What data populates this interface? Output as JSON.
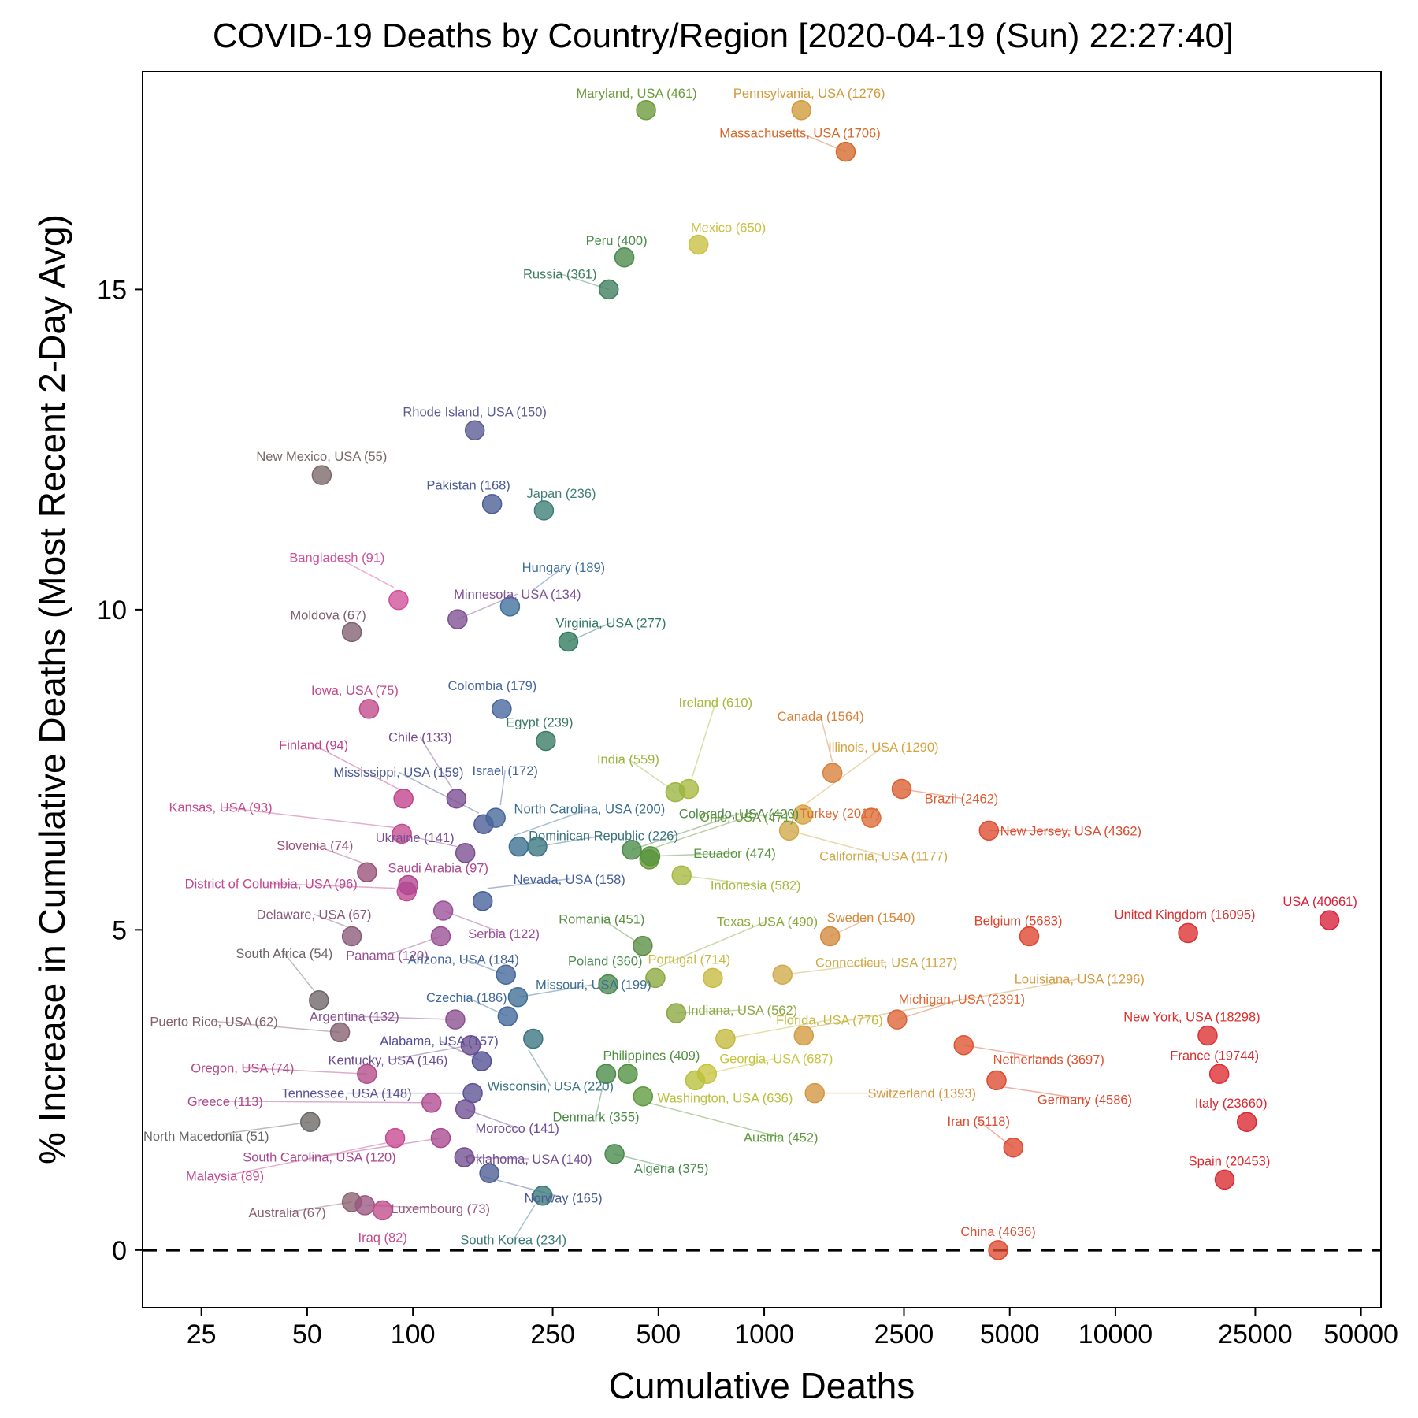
{
  "chart_data": {
    "type": "scatter",
    "title": "COVID-19 Deaths by Country/Region [2020-04-19 (Sun) 22:27:40]",
    "xlabel": "Cumulative Deaths",
    "ylabel": "% Increase in Cumulative Deaths (Most Recent 2-Day Avg)",
    "x_scale": "log",
    "xlim": [
      17,
      57000
    ],
    "ylim": [
      -0.9,
      18.4
    ],
    "x_ticks": [
      25,
      50,
      100,
      250,
      500,
      1000,
      2500,
      5000,
      10000,
      25000,
      50000
    ],
    "x_tick_labels": [
      "25",
      "50",
      "100",
      "250",
      "500",
      "1000",
      "2500",
      "5000",
      "10000",
      "25000",
      "50000"
    ],
    "y_ticks": [
      0,
      5,
      10,
      15
    ],
    "y_tick_labels": [
      "0",
      "5",
      "10",
      "15"
    ],
    "reference_line": {
      "y": 0,
      "style": "dashed"
    },
    "grid": false,
    "points": [
      {
        "label": "Maryland, USA (461)",
        "x": 461,
        "y": 17.8,
        "color": "#6a9a3a"
      },
      {
        "label": "Pennsylvania, USA (1276)",
        "x": 1276,
        "y": 17.8,
        "color": "#d09a3a"
      },
      {
        "label": "Massachusetts, USA (1706)",
        "x": 1706,
        "y": 17.15,
        "color": "#d4682a"
      },
      {
        "label": "Peru (400)",
        "x": 400,
        "y": 15.5,
        "color": "#4a8a4a"
      },
      {
        "label": "Mexico (650)",
        "x": 650,
        "y": 15.7,
        "color": "#c8c040"
      },
      {
        "label": "Russia (361)",
        "x": 361,
        "y": 15.0,
        "color": "#3e7e5e"
      },
      {
        "label": "Rhode Island, USA (150)",
        "x": 150,
        "y": 12.8,
        "color": "#5a5a94"
      },
      {
        "label": "New Mexico, USA (55)",
        "x": 55,
        "y": 12.1,
        "color": "#7a6868"
      },
      {
        "label": "Pakistan (168)",
        "x": 168,
        "y": 11.65,
        "color": "#4a5e94"
      },
      {
        "label": "Japan (236)",
        "x": 236,
        "y": 11.55,
        "color": "#3e7e76"
      },
      {
        "label": "Hungary (189)",
        "x": 189,
        "y": 10.05,
        "color": "#3e6e9a"
      },
      {
        "label": "Bangladesh (91)",
        "x": 91,
        "y": 10.15,
        "color": "#d0509a"
      },
      {
        "label": "Minnesota, USA (134)",
        "x": 134,
        "y": 9.85,
        "color": "#7e5094"
      },
      {
        "label": "Moldova (67)",
        "x": 67,
        "y": 9.65,
        "color": "#806070"
      },
      {
        "label": "Virginia, USA (277)",
        "x": 277,
        "y": 9.5,
        "color": "#2e7a5e"
      },
      {
        "label": "Iowa, USA (75)",
        "x": 75,
        "y": 8.45,
        "color": "#c04a8a"
      },
      {
        "label": "Colombia (179)",
        "x": 179,
        "y": 8.45,
        "color": "#46669e"
      },
      {
        "label": "Egypt (239)",
        "x": 239,
        "y": 7.95,
        "color": "#3a7a64"
      },
      {
        "label": "Finland (94)",
        "x": 94,
        "y": 7.05,
        "color": "#c0408a"
      },
      {
        "label": "Chile (133)",
        "x": 133,
        "y": 7.05,
        "color": "#7a4a90"
      },
      {
        "label": "Mississippi, USA (159)",
        "x": 159,
        "y": 6.65,
        "color": "#4a5a94"
      },
      {
        "label": "Israel (172)",
        "x": 172,
        "y": 6.75,
        "color": "#46669a"
      },
      {
        "label": "Kansas, USA (93)",
        "x": 93,
        "y": 6.5,
        "color": "#c44a90"
      },
      {
        "label": "Ukraine (141)",
        "x": 141,
        "y": 6.2,
        "color": "#7a4e90"
      },
      {
        "label": "North Carolina, USA (200)",
        "x": 200,
        "y": 6.3,
        "color": "#3a6e90"
      },
      {
        "label": "Dominican Republic (226)",
        "x": 226,
        "y": 6.3,
        "color": "#3a7480"
      },
      {
        "label": "Slovenia (74)",
        "x": 74,
        "y": 5.9,
        "color": "#9a5078"
      },
      {
        "label": "District of Columbia, USA (96)",
        "x": 96,
        "y": 5.6,
        "color": "#c04890"
      },
      {
        "label": "Saudi Arabia (97)",
        "x": 97,
        "y": 5.7,
        "color": "#b04690"
      },
      {
        "label": "Nevada, USA (158)",
        "x": 158,
        "y": 5.45,
        "color": "#44609a"
      },
      {
        "label": "Serbia (122)",
        "x": 122,
        "y": 5.3,
        "color": "#9a5098"
      },
      {
        "label": "Delaware, USA (67)",
        "x": 67,
        "y": 4.9,
        "color": "#8a5a7a"
      },
      {
        "label": "Panama (120)",
        "x": 120,
        "y": 4.9,
        "color": "#9a4e94"
      },
      {
        "label": "South Africa (54)",
        "x": 54,
        "y": 3.9,
        "color": "#6e6466"
      },
      {
        "label": "Argentina (132)",
        "x": 132,
        "y": 3.6,
        "color": "#8a5090"
      },
      {
        "label": "Arizona, USA (184)",
        "x": 184,
        "y": 4.3,
        "color": "#44669a"
      },
      {
        "label": "Czechia (186)",
        "x": 186,
        "y": 3.65,
        "color": "#40689a"
      },
      {
        "label": "Puerto Rico, USA (62)",
        "x": 62,
        "y": 3.4,
        "color": "#846070"
      },
      {
        "label": "Kentucky, USA (146)",
        "x": 146,
        "y": 3.2,
        "color": "#6a4e90"
      },
      {
        "label": "Alabama, USA (157)",
        "x": 157,
        "y": 2.95,
        "color": "#524e94"
      },
      {
        "label": "Missouri, USA (199)",
        "x": 199,
        "y": 3.95,
        "color": "#3e6e94"
      },
      {
        "label": "Wisconsin, USA (220)",
        "x": 220,
        "y": 3.3,
        "color": "#3a7480"
      },
      {
        "label": "Oregon, USA (74)",
        "x": 74,
        "y": 2.75,
        "color": "#b44a88"
      },
      {
        "label": "Greece (113)",
        "x": 113,
        "y": 2.3,
        "color": "#b04a90"
      },
      {
        "label": "Tennessee, USA (148)",
        "x": 148,
        "y": 2.45,
        "color": "#5a5294"
      },
      {
        "label": "Morocco (141)",
        "x": 141,
        "y": 2.2,
        "color": "#6e4e92"
      },
      {
        "label": "North Macedonia (51)",
        "x": 51,
        "y": 2.0,
        "color": "#6a6666"
      },
      {
        "label": "Malaysia (89)",
        "x": 89,
        "y": 1.75,
        "color": "#c84890"
      },
      {
        "label": "South Carolina, USA (120)",
        "x": 120,
        "y": 1.75,
        "color": "#a84890"
      },
      {
        "label": "Oklahoma, USA (140)",
        "x": 140,
        "y": 1.45,
        "color": "#724e90"
      },
      {
        "label": "Norway (165)",
        "x": 165,
        "y": 1.2,
        "color": "#4a5c94"
      },
      {
        "label": "South Korea (234)",
        "x": 234,
        "y": 0.85,
        "color": "#3a7878"
      },
      {
        "label": "Australia (67)",
        "x": 67,
        "y": 0.75,
        "color": "#8a6070"
      },
      {
        "label": "Luxembourg (73)",
        "x": 73,
        "y": 0.7,
        "color": "#9a5680"
      },
      {
        "label": "Iraq (82)",
        "x": 82,
        "y": 0.62,
        "color": "#c04c8c"
      },
      {
        "label": "Ireland (610)",
        "x": 610,
        "y": 7.2,
        "color": "#a8b83c"
      },
      {
        "label": "India (559)",
        "x": 559,
        "y": 7.15,
        "color": "#9ab440"
      },
      {
        "label": "Colorado, USA (420)",
        "x": 420,
        "y": 6.25,
        "color": "#4a8a48"
      },
      {
        "label": "Ohio, USA (471)",
        "x": 471,
        "y": 6.1,
        "color": "#6a9a36"
      },
      {
        "label": "Ecuador (474)",
        "x": 474,
        "y": 6.15,
        "color": "#56943c"
      },
      {
        "label": "Indonesia (582)",
        "x": 582,
        "y": 5.85,
        "color": "#a6b840"
      },
      {
        "label": "Romania (451)",
        "x": 451,
        "y": 4.75,
        "color": "#5a8e44"
      },
      {
        "label": "Texas, USA (490)",
        "x": 490,
        "y": 4.25,
        "color": "#8aa83c"
      },
      {
        "label": "Poland (360)",
        "x": 360,
        "y": 4.15,
        "color": "#4a8a4e"
      },
      {
        "label": "Portugal (714)",
        "x": 714,
        "y": 4.25,
        "color": "#c8ba40"
      },
      {
        "label": "Indiana, USA (562)",
        "x": 562,
        "y": 3.7,
        "color": "#8aa840"
      },
      {
        "label": "Florida, USA (776)",
        "x": 776,
        "y": 3.3,
        "color": "#c4b83c"
      },
      {
        "label": "Georgia, USA (687)",
        "x": 687,
        "y": 2.75,
        "color": "#c6c43c"
      },
      {
        "label": "Washington, USA (636)",
        "x": 636,
        "y": 2.65,
        "color": "#b8c03c"
      },
      {
        "label": "Philippines (409)",
        "x": 409,
        "y": 2.75,
        "color": "#509040"
      },
      {
        "label": "Denmark (355)",
        "x": 355,
        "y": 2.75,
        "color": "#4a8a46"
      },
      {
        "label": "Austria (452)",
        "x": 452,
        "y": 2.4,
        "color": "#5e9a3e"
      },
      {
        "label": "Algeria (375)",
        "x": 375,
        "y": 1.5,
        "color": "#468a4a"
      },
      {
        "label": "Canada (1564)",
        "x": 1564,
        "y": 7.45,
        "color": "#d8803a"
      },
      {
        "label": "Illinois, USA (1290)",
        "x": 1290,
        "y": 6.8,
        "color": "#d6a43e"
      },
      {
        "label": "California, USA (1177)",
        "x": 1177,
        "y": 6.55,
        "color": "#d0a848"
      },
      {
        "label": "Turkey (2017)",
        "x": 2017,
        "y": 6.75,
        "color": "#dc6a34"
      },
      {
        "label": "Brazil (2462)",
        "x": 2462,
        "y": 7.2,
        "color": "#dc5e30"
      },
      {
        "label": "New Jersey, USA (4362)",
        "x": 4362,
        "y": 6.55,
        "color": "#de4a2e"
      },
      {
        "label": "Sweden (1540)",
        "x": 1540,
        "y": 4.9,
        "color": "#d4883a"
      },
      {
        "label": "Connecticut, USA (1127)",
        "x": 1127,
        "y": 4.3,
        "color": "#d0aa48"
      },
      {
        "label": "Louisiana, USA (1296)",
        "x": 1296,
        "y": 3.35,
        "color": "#d49a40"
      },
      {
        "label": "Switzerland (1393)",
        "x": 1393,
        "y": 2.45,
        "color": "#d29640"
      },
      {
        "label": "Michigan, USA (2391)",
        "x": 2391,
        "y": 3.6,
        "color": "#dc6434"
      },
      {
        "label": "Netherlands (3697)",
        "x": 3697,
        "y": 3.2,
        "color": "#de5230"
      },
      {
        "label": "Germany (4586)",
        "x": 4586,
        "y": 2.65,
        "color": "#de4a2e"
      },
      {
        "label": "Belgium (5683)",
        "x": 5683,
        "y": 4.9,
        "color": "#de442e"
      },
      {
        "label": "Iran (5118)",
        "x": 5118,
        "y": 1.6,
        "color": "#de482e"
      },
      {
        "label": "China (4636)",
        "x": 4636,
        "y": 0.0,
        "color": "#de4a2e"
      },
      {
        "label": "United Kingdom (16095)",
        "x": 16095,
        "y": 4.95,
        "color": "#dc3030"
      },
      {
        "label": "New York, USA (18298)",
        "x": 18298,
        "y": 3.35,
        "color": "#dc3030"
      },
      {
        "label": "France (19744)",
        "x": 19744,
        "y": 2.75,
        "color": "#dc2c30"
      },
      {
        "label": "Italy (23660)",
        "x": 23660,
        "y": 2.0,
        "color": "#da2830"
      },
      {
        "label": "Spain (20453)",
        "x": 20453,
        "y": 1.1,
        "color": "#da2a30"
      },
      {
        "label": "USA (40661)",
        "x": 40661,
        "y": 5.15,
        "color": "#d8203a"
      }
    ]
  }
}
